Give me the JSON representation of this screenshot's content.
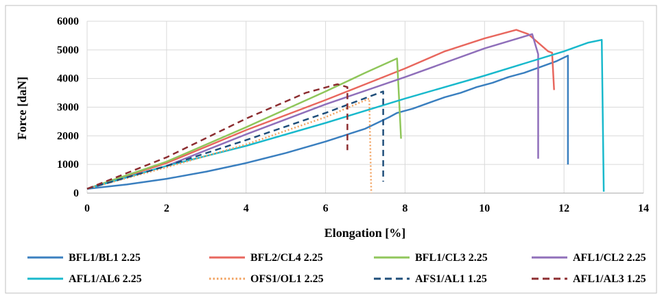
{
  "chart_data": {
    "type": "line",
    "title": "",
    "xlabel": "Elongation [%]",
    "ylabel": "Force [daN]",
    "xlim": [
      0,
      14
    ],
    "ylim": [
      0,
      6000
    ],
    "xticks": [
      "0",
      "2",
      "4",
      "6",
      "8",
      "10",
      "12",
      "14"
    ],
    "yticks": [
      "0",
      "1000",
      "2000",
      "3000",
      "4000",
      "5000",
      "6000"
    ],
    "grid": true,
    "legend_position": "bottom",
    "series": [
      {
        "name": "BFL1/BL1 2.25",
        "color": "#3a7fbf",
        "dash": "solid",
        "x": [
          0,
          1,
          2,
          3,
          4,
          5,
          6,
          7,
          7.6,
          7.8,
          8.2,
          8.6,
          9.0,
          9.4,
          9.8,
          10.2,
          10.6,
          11.0,
          11.4,
          11.8,
          12.1,
          12.1
        ],
        "y": [
          150,
          300,
          500,
          750,
          1050,
          1400,
          1800,
          2250,
          2650,
          2800,
          2950,
          3150,
          3350,
          3500,
          3700,
          3850,
          4050,
          4200,
          4400,
          4600,
          4800,
          1000
        ]
      },
      {
        "name": "BFL2/CL4 2.25",
        "color": "#e8675e",
        "dash": "solid",
        "x": [
          0,
          2,
          4,
          6,
          7,
          8,
          9,
          10,
          10.8,
          11.1,
          11.6,
          11.7,
          11.75
        ],
        "y": [
          150,
          1050,
          2200,
          3250,
          3800,
          4350,
          4950,
          5400,
          5700,
          5550,
          4950,
          4900,
          3600
        ]
      },
      {
        "name": "BFL1/CL3 2.25",
        "color": "#8fc65a",
        "dash": "solid",
        "x": [
          0,
          2,
          4,
          6,
          7,
          7.8,
          7.9
        ],
        "y": [
          150,
          1100,
          2300,
          3550,
          4200,
          4700,
          1900
        ]
      },
      {
        "name": "AFL1/CL2 2.25",
        "color": "#8f6fba",
        "dash": "solid",
        "x": [
          0,
          2,
          4,
          6,
          8,
          10,
          11.2,
          11.35,
          11.35
        ],
        "y": [
          150,
          950,
          2050,
          3100,
          4050,
          5050,
          5550,
          4850,
          1200
        ]
      },
      {
        "name": "AFL1/AL6 2.25",
        "color": "#19b9cc",
        "dash": "solid",
        "x": [
          0,
          2,
          4,
          6,
          8,
          10,
          12,
          12.6,
          12.95,
          13.0
        ],
        "y": [
          150,
          950,
          1650,
          2450,
          3300,
          4100,
          4950,
          5250,
          5350,
          50
        ]
      },
      {
        "name": "OFS1/OL1 2.25",
        "color": "#f2a15e",
        "dash": "dot",
        "x": [
          0,
          2,
          4,
          6,
          7.1,
          7.15
        ],
        "y": [
          150,
          900,
          1700,
          2650,
          3300,
          0
        ]
      },
      {
        "name": "AFS1/AL1 1.25",
        "color": "#1f4e7a",
        "dash": "dash",
        "x": [
          0,
          2,
          4,
          6,
          7.45,
          7.45
        ],
        "y": [
          150,
          950,
          1850,
          2800,
          3550,
          400
        ]
      },
      {
        "name": "AFL1/AL3 1.25",
        "color": "#8c2d30",
        "dash": "dash",
        "x": [
          0,
          2,
          4,
          5.5,
          6.3,
          6.55,
          6.55
        ],
        "y": [
          150,
          1250,
          2600,
          3500,
          3800,
          3700,
          1500
        ]
      }
    ]
  }
}
